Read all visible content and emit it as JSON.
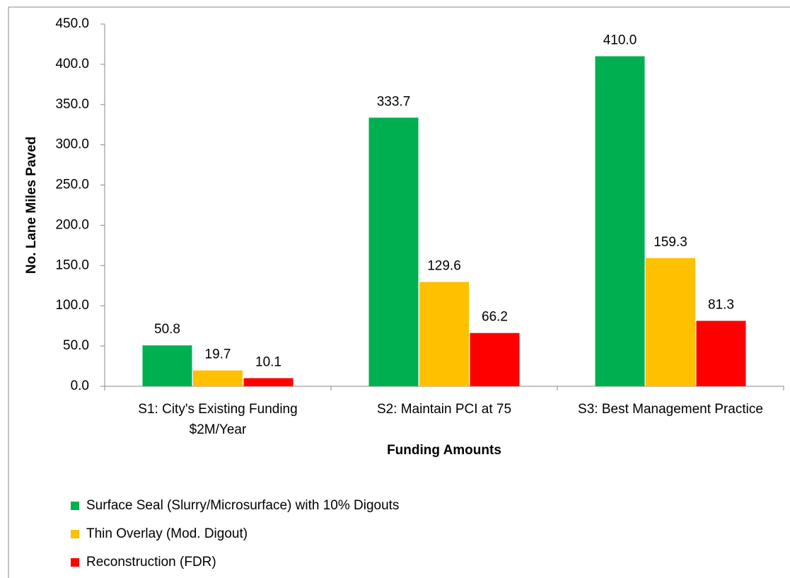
{
  "chart_data": {
    "type": "bar",
    "x_label": "Funding Amounts",
    "y_label": "No. Lane Miles Paved",
    "categories": [
      "S1: City's Existing Funding $2M/Year",
      "S2: Maintain PCI at 75",
      "S3: Best Management Practice"
    ],
    "series": [
      {
        "name": "Surface Seal (Slurry/Microsurface) with 10% Digouts",
        "color": "#00b050",
        "values": [
          50.8,
          333.7,
          410
        ],
        "value_labels": [
          "50.8",
          "333.7",
          "410.0"
        ]
      },
      {
        "name": "Thin Overlay (Mod. Digout)",
        "color": "#ffc000",
        "values": [
          19.7,
          129.6,
          159.3
        ],
        "value_labels": [
          "19.7",
          "129.6",
          "159.3"
        ]
      },
      {
        "name": "Reconstruction (FDR)",
        "color": "#ff0000",
        "values": [
          10.1,
          66.2,
          81.3
        ],
        "value_labels": [
          "10.1",
          "66.2",
          "81.3"
        ]
      }
    ],
    "ylim": [
      0,
      450
    ],
    "yticks": [
      {
        "value": 0,
        "label": "0.0"
      },
      {
        "value": 50,
        "label": "50.0"
      },
      {
        "value": 100,
        "label": "100.0"
      },
      {
        "value": 150,
        "label": "150.0"
      },
      {
        "value": 200,
        "label": "200.0"
      },
      {
        "value": 250,
        "label": "250.0"
      },
      {
        "value": 300,
        "label": "300.0"
      },
      {
        "value": 350,
        "label": "350.0"
      },
      {
        "value": 400,
        "label": "400.0"
      },
      {
        "value": 450,
        "label": "450.0"
      }
    ],
    "grid": false,
    "legend": "bottom"
  }
}
